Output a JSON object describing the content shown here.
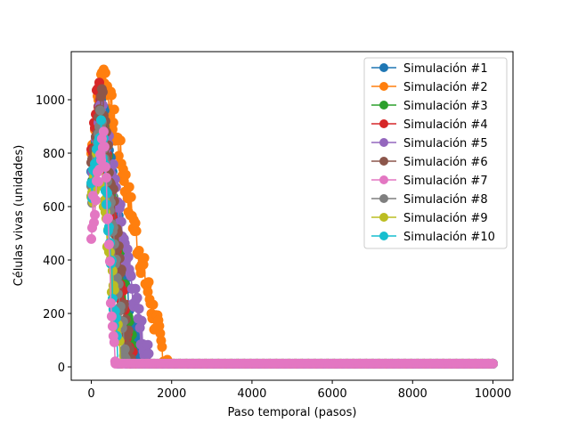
{
  "chart_data": {
    "type": "line",
    "title": "",
    "xlabel": "Paso temporal (pasos)",
    "ylabel": "Células vivas (unidades)",
    "xlim": [
      -500,
      10500
    ],
    "ylim": [
      -50,
      1180
    ],
    "xticks": [
      0,
      2000,
      4000,
      6000,
      8000,
      10000
    ],
    "yticks": [
      0,
      200,
      400,
      600,
      800,
      1000
    ],
    "grid": false,
    "legend_position": "top-right",
    "marker": "circle",
    "series": [
      {
        "name": "Simulación #1",
        "color": "#1f77b4",
        "start": 700,
        "peak": 1000,
        "peak_step": 250,
        "extinction_step": 1250
      },
      {
        "name": "Simulación #2",
        "color": "#ff7f0e",
        "start": 800,
        "peak": 1120,
        "peak_step": 300,
        "extinction_step": 1900
      },
      {
        "name": "Simulación #3",
        "color": "#2ca02c",
        "start": 650,
        "peak": 950,
        "peak_step": 250,
        "extinction_step": 1100
      },
      {
        "name": "Simulación #4",
        "color": "#d62728",
        "start": 750,
        "peak": 1070,
        "peak_step": 150,
        "extinction_step": 1050
      },
      {
        "name": "Simulación #5",
        "color": "#9467bd",
        "start": 700,
        "peak": 980,
        "peak_step": 250,
        "extinction_step": 1450
      },
      {
        "name": "Simulación #6",
        "color": "#8c564b",
        "start": 750,
        "peak": 1040,
        "peak_step": 280,
        "extinction_step": 1000
      },
      {
        "name": "Simulación #7",
        "color": "#e377c2",
        "start": 520,
        "peak": 900,
        "peak_step": 300,
        "extinction_step": 600
      },
      {
        "name": "Simulación #8",
        "color": "#7f7f7f",
        "start": 650,
        "peak": 960,
        "peak_step": 250,
        "extinction_step": 900
      },
      {
        "name": "Simulación #9",
        "color": "#bcbd22",
        "start": 600,
        "peak": 850,
        "peak_step": 200,
        "extinction_step": 750
      },
      {
        "name": "Simulación #10",
        "color": "#17becf",
        "start": 650,
        "peak": 930,
        "peak_step": 250,
        "extinction_step": 700
      }
    ],
    "final_value": 12,
    "x_end": 10000
  }
}
